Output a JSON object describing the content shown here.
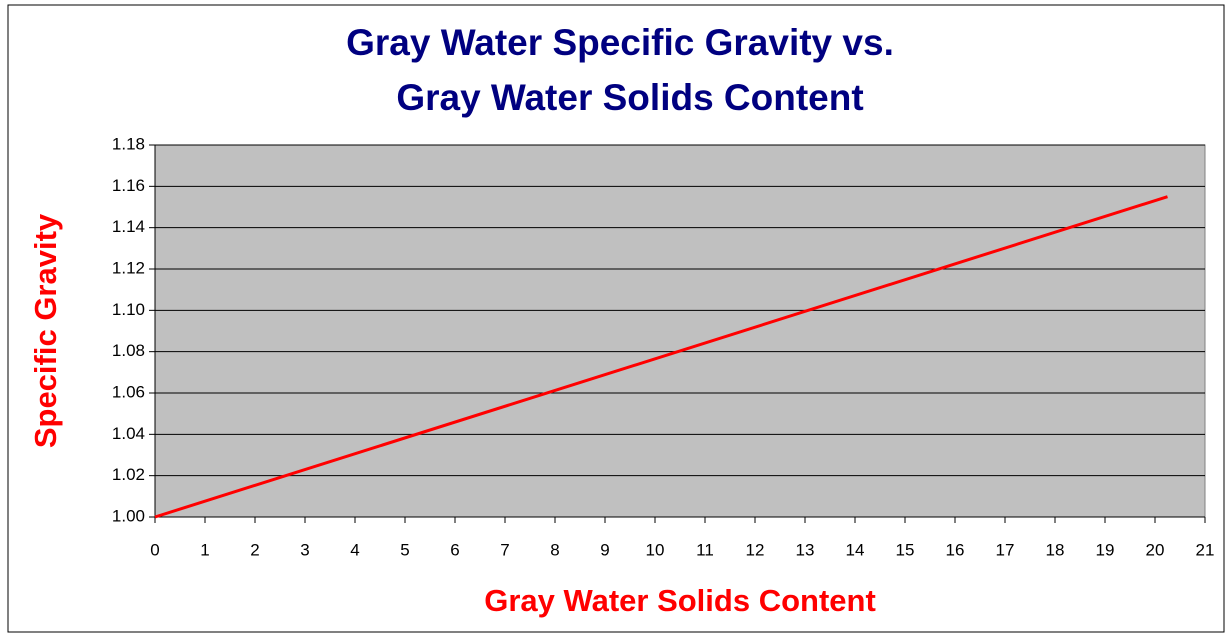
{
  "chart_data": {
    "type": "line",
    "title": [
      "Gray Water Specific Gravity vs.",
      "Gray Water Solids Content"
    ],
    "x_label": "Gray Water Solids Content",
    "y_label": "Specific Gravity",
    "x": [
      0,
      20.25
    ],
    "series": [
      {
        "color": "#ff0000",
        "values": [
          1.0,
          1.155
        ]
      }
    ],
    "xlim": [
      0,
      21
    ],
    "xticks": [
      0,
      1,
      2,
      3,
      4,
      5,
      6,
      7,
      8,
      9,
      10,
      11,
      12,
      13,
      14,
      15,
      16,
      17,
      18,
      19,
      20,
      21
    ],
    "ylim": [
      1.0,
      1.18
    ],
    "yticks": [
      {
        "value": 1.0,
        "label": "1.00"
      },
      1.02,
      1.04,
      1.06,
      1.08,
      {
        "value": 1.1,
        "label": "1.10"
      },
      1.12,
      1.14,
      1.16,
      1.18
    ],
    "grid": true,
    "plot_background": "#c0c0c0",
    "title_color": "#000080",
    "label_color": "#ff0000"
  }
}
